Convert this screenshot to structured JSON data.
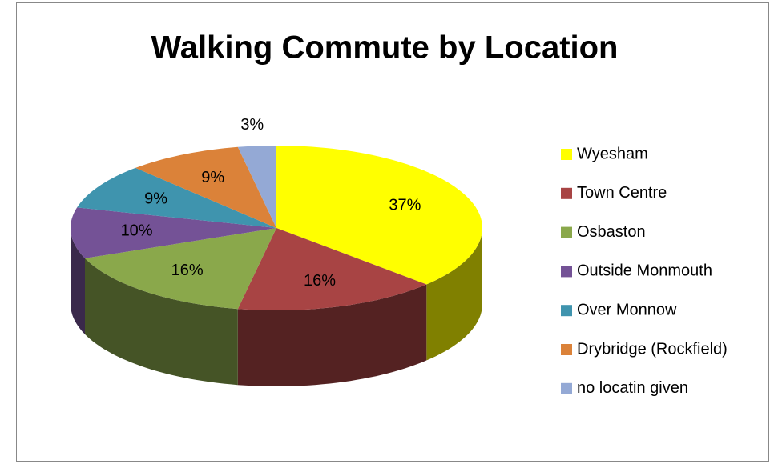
{
  "chart_data": {
    "type": "pie",
    "title": "Walking Commute by Location",
    "categories": [
      "Wyesham",
      "Town Centre",
      "Osbaston",
      "Outside Monmouth",
      "Over Monnow",
      "Drybridge (Rockfield)",
      "no locatin given"
    ],
    "values": [
      37,
      16,
      16,
      10,
      9,
      9,
      3
    ],
    "value_labels": [
      "37%",
      "16%",
      "16%",
      "10%",
      "9%",
      "9%",
      "3%"
    ],
    "colors": [
      "#ffff00",
      "#a84444",
      "#8aa84b",
      "#745296",
      "#3f94ae",
      "#db8239",
      "#94a9d5"
    ],
    "legend": "right"
  }
}
